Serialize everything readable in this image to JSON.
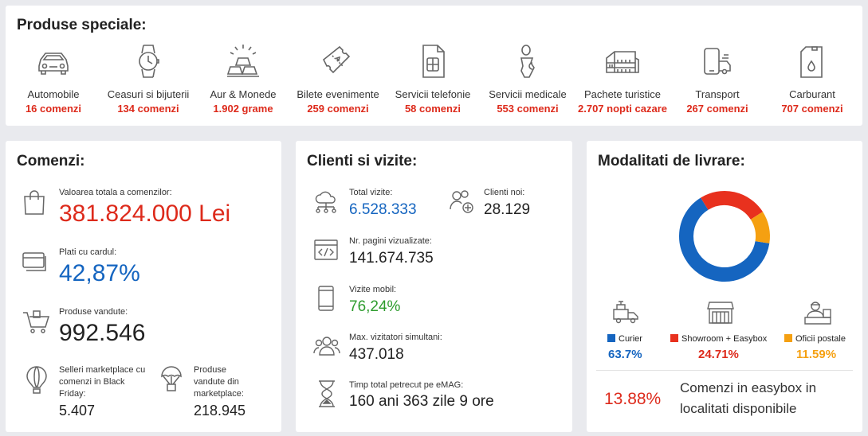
{
  "top": {
    "title": "Produse speciale:",
    "items": [
      {
        "icon": "car-icon",
        "name": "Automobile",
        "count": "16 comenzi"
      },
      {
        "icon": "watch-icon",
        "name": "Ceasuri si bijuterii",
        "count": "134 comenzi"
      },
      {
        "icon": "gold-bars-icon",
        "name": "Aur & Monede",
        "count": "1.902 grame"
      },
      {
        "icon": "ticket-icon",
        "name": "Bilete evenimente",
        "count": "259 comenzi"
      },
      {
        "icon": "sim-card-icon",
        "name": "Servicii telefonie",
        "count": "58 comenzi"
      },
      {
        "icon": "medical-icon",
        "name": "Servicii medicale",
        "count": "553 comenzi"
      },
      {
        "icon": "colosseum-icon",
        "name": "Pachete turistice",
        "count": "2.707 nopti cazare"
      },
      {
        "icon": "transport-icon",
        "name": "Transport",
        "count": "267 comenzi"
      },
      {
        "icon": "fuel-can-icon",
        "name": "Carburant",
        "count": "707 comenzi"
      }
    ]
  },
  "comenzi": {
    "title": "Comenzi:",
    "total_label": "Valoarea totala a comenzilor:",
    "total_value": "381.824.000 Lei",
    "card_label": "Plati cu cardul:",
    "card_value": "42,87%",
    "products_label": "Produse vandute:",
    "products_value": "992.546",
    "sellers_label": "Selleri marketplace cu comenzi in Black Friday:",
    "sellers_value": "5.407",
    "mp_label": "Produse vandute din marketplace:",
    "mp_value": "218.945"
  },
  "clienti": {
    "title": "Clienti si vizite:",
    "visits_label": "Total vizite:",
    "visits_value": "6.528.333",
    "new_label": "Clienti noi:",
    "new_value": "28.129",
    "pages_label": "Nr. pagini vizualizate:",
    "pages_value": "141.674.735",
    "mobile_label": "Vizite mobil:",
    "mobile_value": "76,24%",
    "simult_label": "Max. vizitatori simultani:",
    "simult_value": "437.018",
    "time_label": "Timp total petrecut pe eMAG:",
    "time_value": "160 ani 363 zile 9 ore"
  },
  "livrare": {
    "title": "Modalitati de livrare:",
    "chart_data": {
      "type": "pie",
      "categories": [
        "Curier",
        "Showroom + Easybox",
        "Oficii postale"
      ],
      "values": [
        63.7,
        24.71,
        11.59
      ],
      "colors": [
        "#1565c0",
        "#e8311e",
        "#f5a011"
      ]
    },
    "legend": [
      {
        "label": "Curier",
        "pct": "63.7%",
        "color": "#1565c0"
      },
      {
        "label": "Showroom + Easybox",
        "pct": "24.71%",
        "color": "#e8311e"
      },
      {
        "label": "Oficii postale",
        "pct": "11.59%",
        "color": "#f5a011"
      }
    ],
    "easybox_pct": "13.88%",
    "easybox_text_1": "Comenzi in easybox in",
    "easybox_text_2": "localitati disponibile"
  },
  "colors": {
    "red": "#dd2a1b",
    "blue": "#1565c0",
    "green": "#2e9c2e",
    "orange": "#f5a011"
  }
}
